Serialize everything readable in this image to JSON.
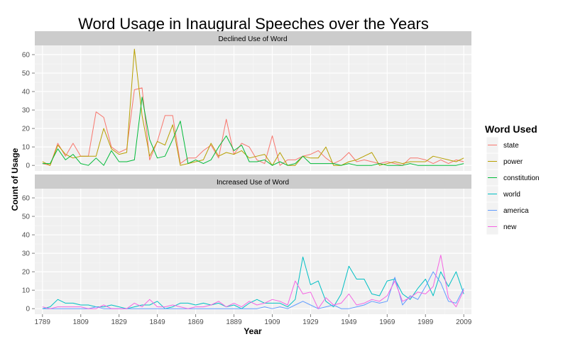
{
  "chart_data": {
    "type": "line",
    "title": "Word Usage in Inaugural Speeches over the Years",
    "xlabel": "Year",
    "ylabel": "Count of Usage",
    "xlim": [
      1785,
      2013
    ],
    "ylim": [
      -3,
      65
    ],
    "x_ticks": [
      1789,
      1809,
      1829,
      1849,
      1869,
      1889,
      1909,
      1929,
      1949,
      1969,
      1989,
      2009
    ],
    "y_ticks": [
      0,
      10,
      20,
      30,
      40,
      50,
      60
    ],
    "legend": {
      "title": "Word Used",
      "position": "right",
      "entries": [
        "state",
        "power",
        "constitution",
        "world",
        "america",
        "new"
      ]
    },
    "colors": {
      "state": "#F8766D",
      "power": "#B79F00",
      "constitution": "#00BA38",
      "world": "#00BFC4",
      "america": "#619CFF",
      "new": "#F564E3"
    },
    "years": [
      1789,
      1793,
      1797,
      1801,
      1805,
      1809,
      1813,
      1817,
      1821,
      1825,
      1829,
      1833,
      1837,
      1841,
      1845,
      1849,
      1853,
      1857,
      1861,
      1865,
      1869,
      1873,
      1877,
      1881,
      1885,
      1889,
      1893,
      1897,
      1901,
      1905,
      1909,
      1913,
      1917,
      1921,
      1925,
      1929,
      1933,
      1937,
      1941,
      1945,
      1949,
      1953,
      1957,
      1961,
      1965,
      1969,
      1973,
      1977,
      1981,
      1985,
      1989,
      1993,
      1997,
      2001,
      2005,
      2009
    ],
    "panels": [
      {
        "strip": "Declined Use of Word",
        "series": [
          {
            "name": "state",
            "values": [
              1,
              0,
              12,
              5,
              12,
              5,
              5,
              29,
              26,
              10,
              7,
              9,
              41,
              42,
              3,
              13,
              27,
              27,
              1,
              4,
              4,
              8,
              11,
              4,
              25,
              6,
              12,
              10,
              3,
              1,
              16,
              0,
              3,
              3,
              5,
              6,
              8,
              4,
              1,
              3,
              7,
              2,
              3,
              2,
              1,
              2,
              1,
              0,
              4,
              4,
              3,
              1,
              3,
              1,
              3,
              2
            ]
          },
          {
            "name": "power",
            "values": [
              2,
              0,
              11,
              6,
              4,
              5,
              5,
              5,
              20,
              9,
              6,
              7,
              63,
              27,
              5,
              13,
              11,
              22,
              0,
              1,
              2,
              3,
              12,
              5,
              7,
              6,
              8,
              4,
              5,
              6,
              0,
              7,
              0,
              0,
              5,
              4,
              4,
              10,
              0,
              0,
              2,
              3,
              5,
              7,
              0,
              1,
              2,
              1,
              2,
              2,
              2,
              5,
              4,
              3,
              2,
              4
            ]
          },
          {
            "name": "constitution",
            "values": [
              1,
              1,
              9,
              3,
              6,
              1,
              0,
              4,
              0,
              8,
              2,
              2,
              3,
              37,
              14,
              4,
              5,
              14,
              24,
              1,
              3,
              1,
              3,
              10,
              16,
              8,
              11,
              2,
              2,
              3,
              0,
              2,
              0,
              1,
              5,
              1,
              1,
              1,
              1,
              0,
              1,
              0,
              0,
              0,
              1,
              0,
              0,
              0,
              1,
              0,
              0,
              0,
              0,
              0,
              0,
              1
            ]
          }
        ]
      },
      {
        "strip": "Increased Use of Word",
        "series": [
          {
            "name": "world",
            "values": [
              0,
              1,
              5,
              3,
              3,
              2,
              2,
              1,
              1,
              2,
              1,
              0,
              1,
              2,
              2,
              4,
              0,
              1,
              3,
              3,
              2,
              3,
              2,
              3,
              1,
              2,
              0,
              3,
              5,
              3,
              3,
              3,
              1,
              5,
              28,
              13,
              15,
              4,
              1,
              8,
              23,
              16,
              16,
              8,
              7,
              15,
              16,
              8,
              5,
              11,
              16,
              7,
              20,
              12,
              20,
              8
            ]
          },
          {
            "name": "america",
            "values": [
              0,
              0,
              0,
              0,
              0,
              0,
              0,
              1,
              0,
              0,
              0,
              0,
              0,
              0,
              0,
              0,
              0,
              0,
              0,
              0,
              0,
              0,
              0,
              0,
              0,
              0,
              0,
              0,
              0,
              1,
              0,
              1,
              0,
              2,
              4,
              2,
              0,
              1,
              2,
              0,
              0,
              1,
              2,
              4,
              3,
              4,
              17,
              2,
              7,
              5,
              12,
              20,
              14,
              4,
              3,
              11
            ]
          },
          {
            "name": "new",
            "values": [
              1,
              0,
              1,
              1,
              1,
              1,
              0,
              0,
              2,
              0,
              0,
              0,
              3,
              1,
              5,
              1,
              1,
              2,
              1,
              0,
              1,
              1,
              2,
              4,
              1,
              3,
              1,
              4,
              2,
              3,
              5,
              4,
              2,
              15,
              8,
              9,
              0,
              6,
              2,
              3,
              8,
              2,
              3,
              5,
              4,
              7,
              15,
              4,
              6,
              9,
              8,
              12,
              29,
              6,
              1,
              10
            ]
          }
        ]
      }
    ]
  }
}
